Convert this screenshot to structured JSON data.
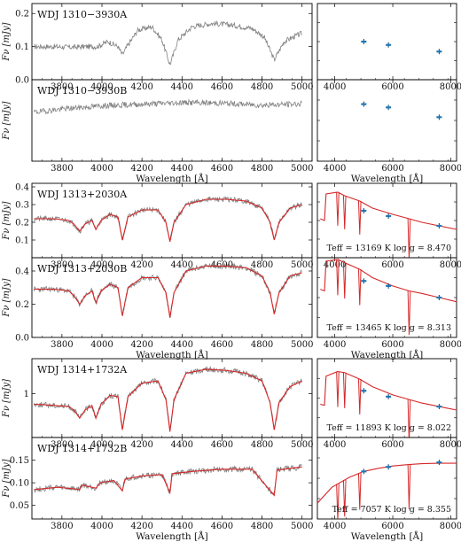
{
  "chart_data": [
    {
      "type": "line",
      "panel": "spectrum",
      "label": "WDJ 1310−3930A",
      "xlabel": "",
      "ylabel": "Fν [mJy]",
      "xlim": [
        3650,
        5050
      ],
      "ylim": [
        0,
        0.23
      ],
      "xticks": [
        3800,
        4000,
        4200,
        4400,
        4600,
        4800,
        5000
      ],
      "yticks": [
        0.0,
        0.1,
        0.2
      ],
      "observed_color": "#808080",
      "model_color": "#d62728",
      "series": [
        {
          "role": "observed",
          "x": [
            3660,
            3750,
            3850,
            3920,
            3975,
            4030,
            4080,
            4102,
            4125,
            4180,
            4250,
            4300,
            4340,
            4380,
            4450,
            4550,
            4650,
            4750,
            4810,
            4861,
            4910,
            4960,
            5000
          ],
          "y": [
            0.1,
            0.1,
            0.098,
            0.1,
            0.1,
            0.115,
            0.1,
            0.075,
            0.1,
            0.15,
            0.16,
            0.12,
            0.045,
            0.12,
            0.16,
            0.17,
            0.165,
            0.155,
            0.13,
            0.06,
            0.115,
            0.13,
            0.14
          ]
        }
      ]
    },
    {
      "type": "scatter",
      "panel": "photometry",
      "xlim": [
        3400,
        8200
      ],
      "ylim": [
        0,
        0.23
      ],
      "xticks": [
        4000,
        6000,
        8000
      ],
      "points_color": "#1f77b4",
      "x": [
        5000,
        5850,
        7600
      ],
      "y": [
        0.115,
        0.105,
        0.085
      ],
      "model": []
    },
    {
      "type": "line",
      "panel": "spectrum",
      "label": "WDJ 1310−3930B",
      "xlabel": "Wavelength [Å]",
      "ylabel": "Fν [mJy]",
      "xlim": [
        3650,
        5050
      ],
      "ylim": [
        0,
        0.25
      ],
      "xticks": [
        3800,
        4000,
        4200,
        4400,
        4600,
        4800,
        5000
      ],
      "yticks": [],
      "observed_color": "#808080",
      "model_color": "#d62728",
      "series": [
        {
          "role": "observed",
          "x": [
            3660,
            3800,
            4000,
            4200,
            4400,
            4600,
            4800,
            5000
          ],
          "y": [
            0.15,
            0.16,
            0.17,
            0.175,
            0.18,
            0.178,
            0.172,
            0.176
          ]
        }
      ]
    },
    {
      "type": "scatter",
      "panel": "photometry",
      "xlabel": "Wavelength [Å]",
      "xlim": [
        3400,
        8200
      ],
      "ylim": [
        0,
        0.25
      ],
      "xticks": [
        4000,
        6000,
        8000
      ],
      "points_color": "#1f77b4",
      "x": [
        5000,
        5850,
        7600
      ],
      "y": [
        0.175,
        0.165,
        0.135
      ],
      "model": []
    },
    {
      "type": "line",
      "panel": "spectrum",
      "label": "WDJ 1313+2030A",
      "xlabel": "",
      "ylabel": "Fν [mJy]",
      "xlim": [
        3650,
        5050
      ],
      "ylim": [
        0,
        0.42
      ],
      "xticks": [
        3800,
        4000,
        4200,
        4400,
        4600,
        4800,
        5000
      ],
      "yticks": [
        0.1,
        0.2,
        0.3,
        0.4
      ],
      "observed_color": "#808080",
      "model_color": "#d62728",
      "series": [
        {
          "role": "observed",
          "x": [
            3660,
            3760,
            3835,
            3860,
            3889,
            3915,
            3950,
            3970,
            3995,
            4040,
            4080,
            4102,
            4130,
            4200,
            4280,
            4320,
            4340,
            4360,
            4420,
            4520,
            4620,
            4720,
            4800,
            4840,
            4861,
            4885,
            4940,
            5000
          ],
          "y": [
            0.22,
            0.22,
            0.21,
            0.19,
            0.15,
            0.19,
            0.21,
            0.16,
            0.21,
            0.245,
            0.23,
            0.1,
            0.23,
            0.27,
            0.27,
            0.2,
            0.09,
            0.2,
            0.3,
            0.33,
            0.33,
            0.32,
            0.28,
            0.2,
            0.1,
            0.2,
            0.28,
            0.3
          ]
        },
        {
          "role": "model",
          "x": [
            3660,
            3760,
            3835,
            3860,
            3889,
            3915,
            3950,
            3970,
            3995,
            4040,
            4080,
            4102,
            4130,
            4200,
            4280,
            4320,
            4340,
            4360,
            4420,
            4520,
            4620,
            4720,
            4800,
            4840,
            4861,
            4885,
            4940,
            5000
          ],
          "y": [
            0.22,
            0.22,
            0.21,
            0.19,
            0.15,
            0.19,
            0.21,
            0.16,
            0.21,
            0.245,
            0.23,
            0.1,
            0.23,
            0.27,
            0.27,
            0.2,
            0.09,
            0.2,
            0.3,
            0.33,
            0.33,
            0.32,
            0.28,
            0.2,
            0.1,
            0.2,
            0.28,
            0.3
          ]
        }
      ]
    },
    {
      "type": "scatter",
      "panel": "photometry",
      "annotation": "Teff = 13169 K  log g = 8.470",
      "xlim": [
        3400,
        8200
      ],
      "ylim": [
        0,
        0.42
      ],
      "xticks": [
        4000,
        6000,
        8000
      ],
      "points_color": "#1f77b4",
      "x": [
        5000,
        5850,
        7600
      ],
      "y": [
        0.265,
        0.235,
        0.18
      ],
      "model": [
        [
          3500,
          0.22
        ],
        [
          3645,
          0.21
        ],
        [
          3700,
          0.36
        ],
        [
          4102,
          0.37
        ],
        [
          4340,
          0.35
        ],
        [
          4861,
          0.32
        ],
        [
          5300,
          0.28
        ],
        [
          6000,
          0.245
        ],
        [
          6563,
          0.22
        ],
        [
          7000,
          0.2
        ],
        [
          7600,
          0.18
        ],
        [
          8200,
          0.16
        ]
      ]
    },
    {
      "type": "line",
      "panel": "spectrum",
      "label": "WDJ 1313+2030B",
      "xlabel": "Wavelength [Å]",
      "ylabel": "Fν [mJy]",
      "xlim": [
        3650,
        5050
      ],
      "ylim": [
        0,
        0.48
      ],
      "xticks": [
        3800,
        4000,
        4200,
        4400,
        4600,
        4800,
        5000
      ],
      "yticks": [
        0.0,
        0.2,
        0.4
      ],
      "observed_color": "#808080",
      "model_color": "#d62728",
      "series": [
        {
          "role": "observed",
          "x": [
            3660,
            3760,
            3835,
            3860,
            3889,
            3915,
            3950,
            3970,
            3995,
            4040,
            4080,
            4102,
            4130,
            4200,
            4280,
            4320,
            4340,
            4360,
            4420,
            4520,
            4620,
            4720,
            4800,
            4840,
            4861,
            4885,
            4940,
            5000
          ],
          "y": [
            0.29,
            0.29,
            0.28,
            0.25,
            0.2,
            0.25,
            0.28,
            0.21,
            0.28,
            0.32,
            0.3,
            0.13,
            0.3,
            0.36,
            0.36,
            0.27,
            0.12,
            0.27,
            0.4,
            0.43,
            0.43,
            0.42,
            0.37,
            0.27,
            0.14,
            0.27,
            0.37,
            0.39
          ]
        },
        {
          "role": "model",
          "x": [
            3660,
            3760,
            3835,
            3860,
            3889,
            3915,
            3950,
            3970,
            3995,
            4040,
            4080,
            4102,
            4130,
            4200,
            4280,
            4320,
            4340,
            4360,
            4420,
            4520,
            4620,
            4720,
            4800,
            4840,
            4861,
            4885,
            4940,
            5000
          ],
          "y": [
            0.29,
            0.29,
            0.28,
            0.25,
            0.2,
            0.25,
            0.28,
            0.21,
            0.28,
            0.32,
            0.3,
            0.13,
            0.3,
            0.36,
            0.36,
            0.27,
            0.12,
            0.27,
            0.4,
            0.43,
            0.43,
            0.42,
            0.37,
            0.27,
            0.14,
            0.27,
            0.37,
            0.39
          ]
        }
      ]
    },
    {
      "type": "scatter",
      "panel": "photometry",
      "xlabel": "Wavelength [Å]",
      "annotation": "Teff = 13465 K  log g = 8.313",
      "xlim": [
        3400,
        8200
      ],
      "ylim": [
        0,
        0.48
      ],
      "xticks": [
        4000,
        6000,
        8000
      ],
      "points_color": "#1f77b4",
      "x": [
        5000,
        5850,
        7600
      ],
      "y": [
        0.34,
        0.31,
        0.24
      ],
      "model": [
        [
          3500,
          0.29
        ],
        [
          3645,
          0.28
        ],
        [
          3700,
          0.46
        ],
        [
          4102,
          0.47
        ],
        [
          4340,
          0.45
        ],
        [
          4861,
          0.41
        ],
        [
          5300,
          0.36
        ],
        [
          6000,
          0.31
        ],
        [
          6563,
          0.28
        ],
        [
          7000,
          0.265
        ],
        [
          7600,
          0.24
        ],
        [
          8200,
          0.215
        ]
      ]
    },
    {
      "type": "line",
      "panel": "spectrum",
      "label": "WDJ 1314+1732A",
      "xlabel": "",
      "ylabel": "Fν [mJy]",
      "xlim": [
        3650,
        5050
      ],
      "ylim": [
        0.25,
        1.6
      ],
      "xticks": [
        3800,
        4000,
        4200,
        4400,
        4600,
        4800,
        5000
      ],
      "yticks": [
        1
      ],
      "observed_color": "#808080",
      "model_color": "#d62728",
      "series": [
        {
          "role": "observed",
          "x": [
            3660,
            3760,
            3835,
            3860,
            3889,
            3915,
            3950,
            3970,
            3995,
            4040,
            4080,
            4102,
            4130,
            4200,
            4280,
            4320,
            4340,
            4360,
            4420,
            4520,
            4620,
            4720,
            4800,
            4840,
            4861,
            4885,
            4940,
            5000
          ],
          "y": [
            0.82,
            0.8,
            0.78,
            0.72,
            0.58,
            0.72,
            0.8,
            0.58,
            0.82,
            0.97,
            0.95,
            0.38,
            0.95,
            1.18,
            1.22,
            0.9,
            0.35,
            0.9,
            1.35,
            1.42,
            1.4,
            1.35,
            1.22,
            0.85,
            0.38,
            0.85,
            1.12,
            1.22
          ]
        },
        {
          "role": "model",
          "x": [
            3660,
            3760,
            3835,
            3860,
            3889,
            3915,
            3950,
            3970,
            3995,
            4040,
            4080,
            4102,
            4130,
            4200,
            4280,
            4320,
            4340,
            4360,
            4420,
            4520,
            4620,
            4720,
            4800,
            4840,
            4861,
            4885,
            4940,
            5000
          ],
          "y": [
            0.82,
            0.8,
            0.78,
            0.72,
            0.58,
            0.72,
            0.8,
            0.58,
            0.82,
            0.97,
            0.95,
            0.38,
            0.95,
            1.18,
            1.22,
            0.9,
            0.35,
            0.9,
            1.35,
            1.42,
            1.4,
            1.35,
            1.22,
            0.85,
            0.38,
            0.85,
            1.12,
            1.22
          ]
        }
      ]
    },
    {
      "type": "scatter",
      "panel": "photometry",
      "annotation": "Teff = 11893 K  log g = 8.022",
      "xlim": [
        3400,
        8200
      ],
      "ylim": [
        0.25,
        1.6
      ],
      "xticks": [
        4000,
        6000,
        8000
      ],
      "points_color": "#1f77b4",
      "x": [
        5000,
        5850,
        7600
      ],
      "y": [
        1.05,
        0.95,
        0.78
      ],
      "model": [
        [
          3500,
          0.82
        ],
        [
          3645,
          0.8
        ],
        [
          3700,
          1.3
        ],
        [
          4102,
          1.38
        ],
        [
          4340,
          1.36
        ],
        [
          4861,
          1.25
        ],
        [
          5300,
          1.12
        ],
        [
          6000,
          0.98
        ],
        [
          6563,
          0.9
        ],
        [
          7000,
          0.84
        ],
        [
          7600,
          0.78
        ],
        [
          8200,
          0.72
        ]
      ]
    },
    {
      "type": "line",
      "panel": "spectrum",
      "label": "WDJ 1314+1732B",
      "xlabel": "Wavelength [Å]",
      "ylabel": "Fν [mJy]",
      "xlim": [
        3650,
        5050
      ],
      "ylim": [
        0.02,
        0.2
      ],
      "xticks": [
        3800,
        4000,
        4200,
        4400,
        4600,
        4800,
        5000
      ],
      "yticks": [
        0.05,
        0.1,
        0.15
      ],
      "observed_color": "#808080",
      "model_color": "#d62728",
      "series": [
        {
          "role": "observed",
          "x": [
            3660,
            3780,
            3889,
            3900,
            3970,
            3990,
            4060,
            4102,
            4115,
            4200,
            4300,
            4340,
            4350,
            4450,
            4600,
            4750,
            4861,
            4875,
            5000
          ],
          "y": [
            0.085,
            0.09,
            0.085,
            0.095,
            0.088,
            0.1,
            0.105,
            0.082,
            0.108,
            0.115,
            0.118,
            0.078,
            0.12,
            0.125,
            0.13,
            0.13,
            0.072,
            0.128,
            0.135
          ]
        },
        {
          "role": "model",
          "x": [
            3660,
            3780,
            3889,
            3900,
            3970,
            3990,
            4060,
            4102,
            4115,
            4200,
            4300,
            4340,
            4350,
            4450,
            4600,
            4750,
            4861,
            4875,
            5000
          ],
          "y": [
            0.085,
            0.09,
            0.085,
            0.095,
            0.088,
            0.1,
            0.105,
            0.082,
            0.108,
            0.115,
            0.118,
            0.078,
            0.12,
            0.125,
            0.13,
            0.13,
            0.072,
            0.128,
            0.135
          ]
        }
      ]
    },
    {
      "type": "scatter",
      "panel": "photometry",
      "xlabel": "Wavelength [Å]",
      "annotation": "Teff = 7057 K  log g = 8.355",
      "xlim": [
        3400,
        8200
      ],
      "ylim": [
        0.02,
        0.2
      ],
      "xticks": [
        4000,
        6000,
        8000
      ],
      "points_color": "#1f77b4",
      "x": [
        5000,
        5850,
        7600
      ],
      "y": [
        0.125,
        0.135,
        0.145
      ],
      "model": [
        [
          3400,
          0.055
        ],
        [
          3900,
          0.09
        ],
        [
          4500,
          0.112
        ],
        [
          5000,
          0.125
        ],
        [
          5500,
          0.132
        ],
        [
          6000,
          0.137
        ],
        [
          6500,
          0.14
        ],
        [
          7000,
          0.142
        ],
        [
          7600,
          0.143
        ],
        [
          8200,
          0.143
        ]
      ]
    }
  ]
}
